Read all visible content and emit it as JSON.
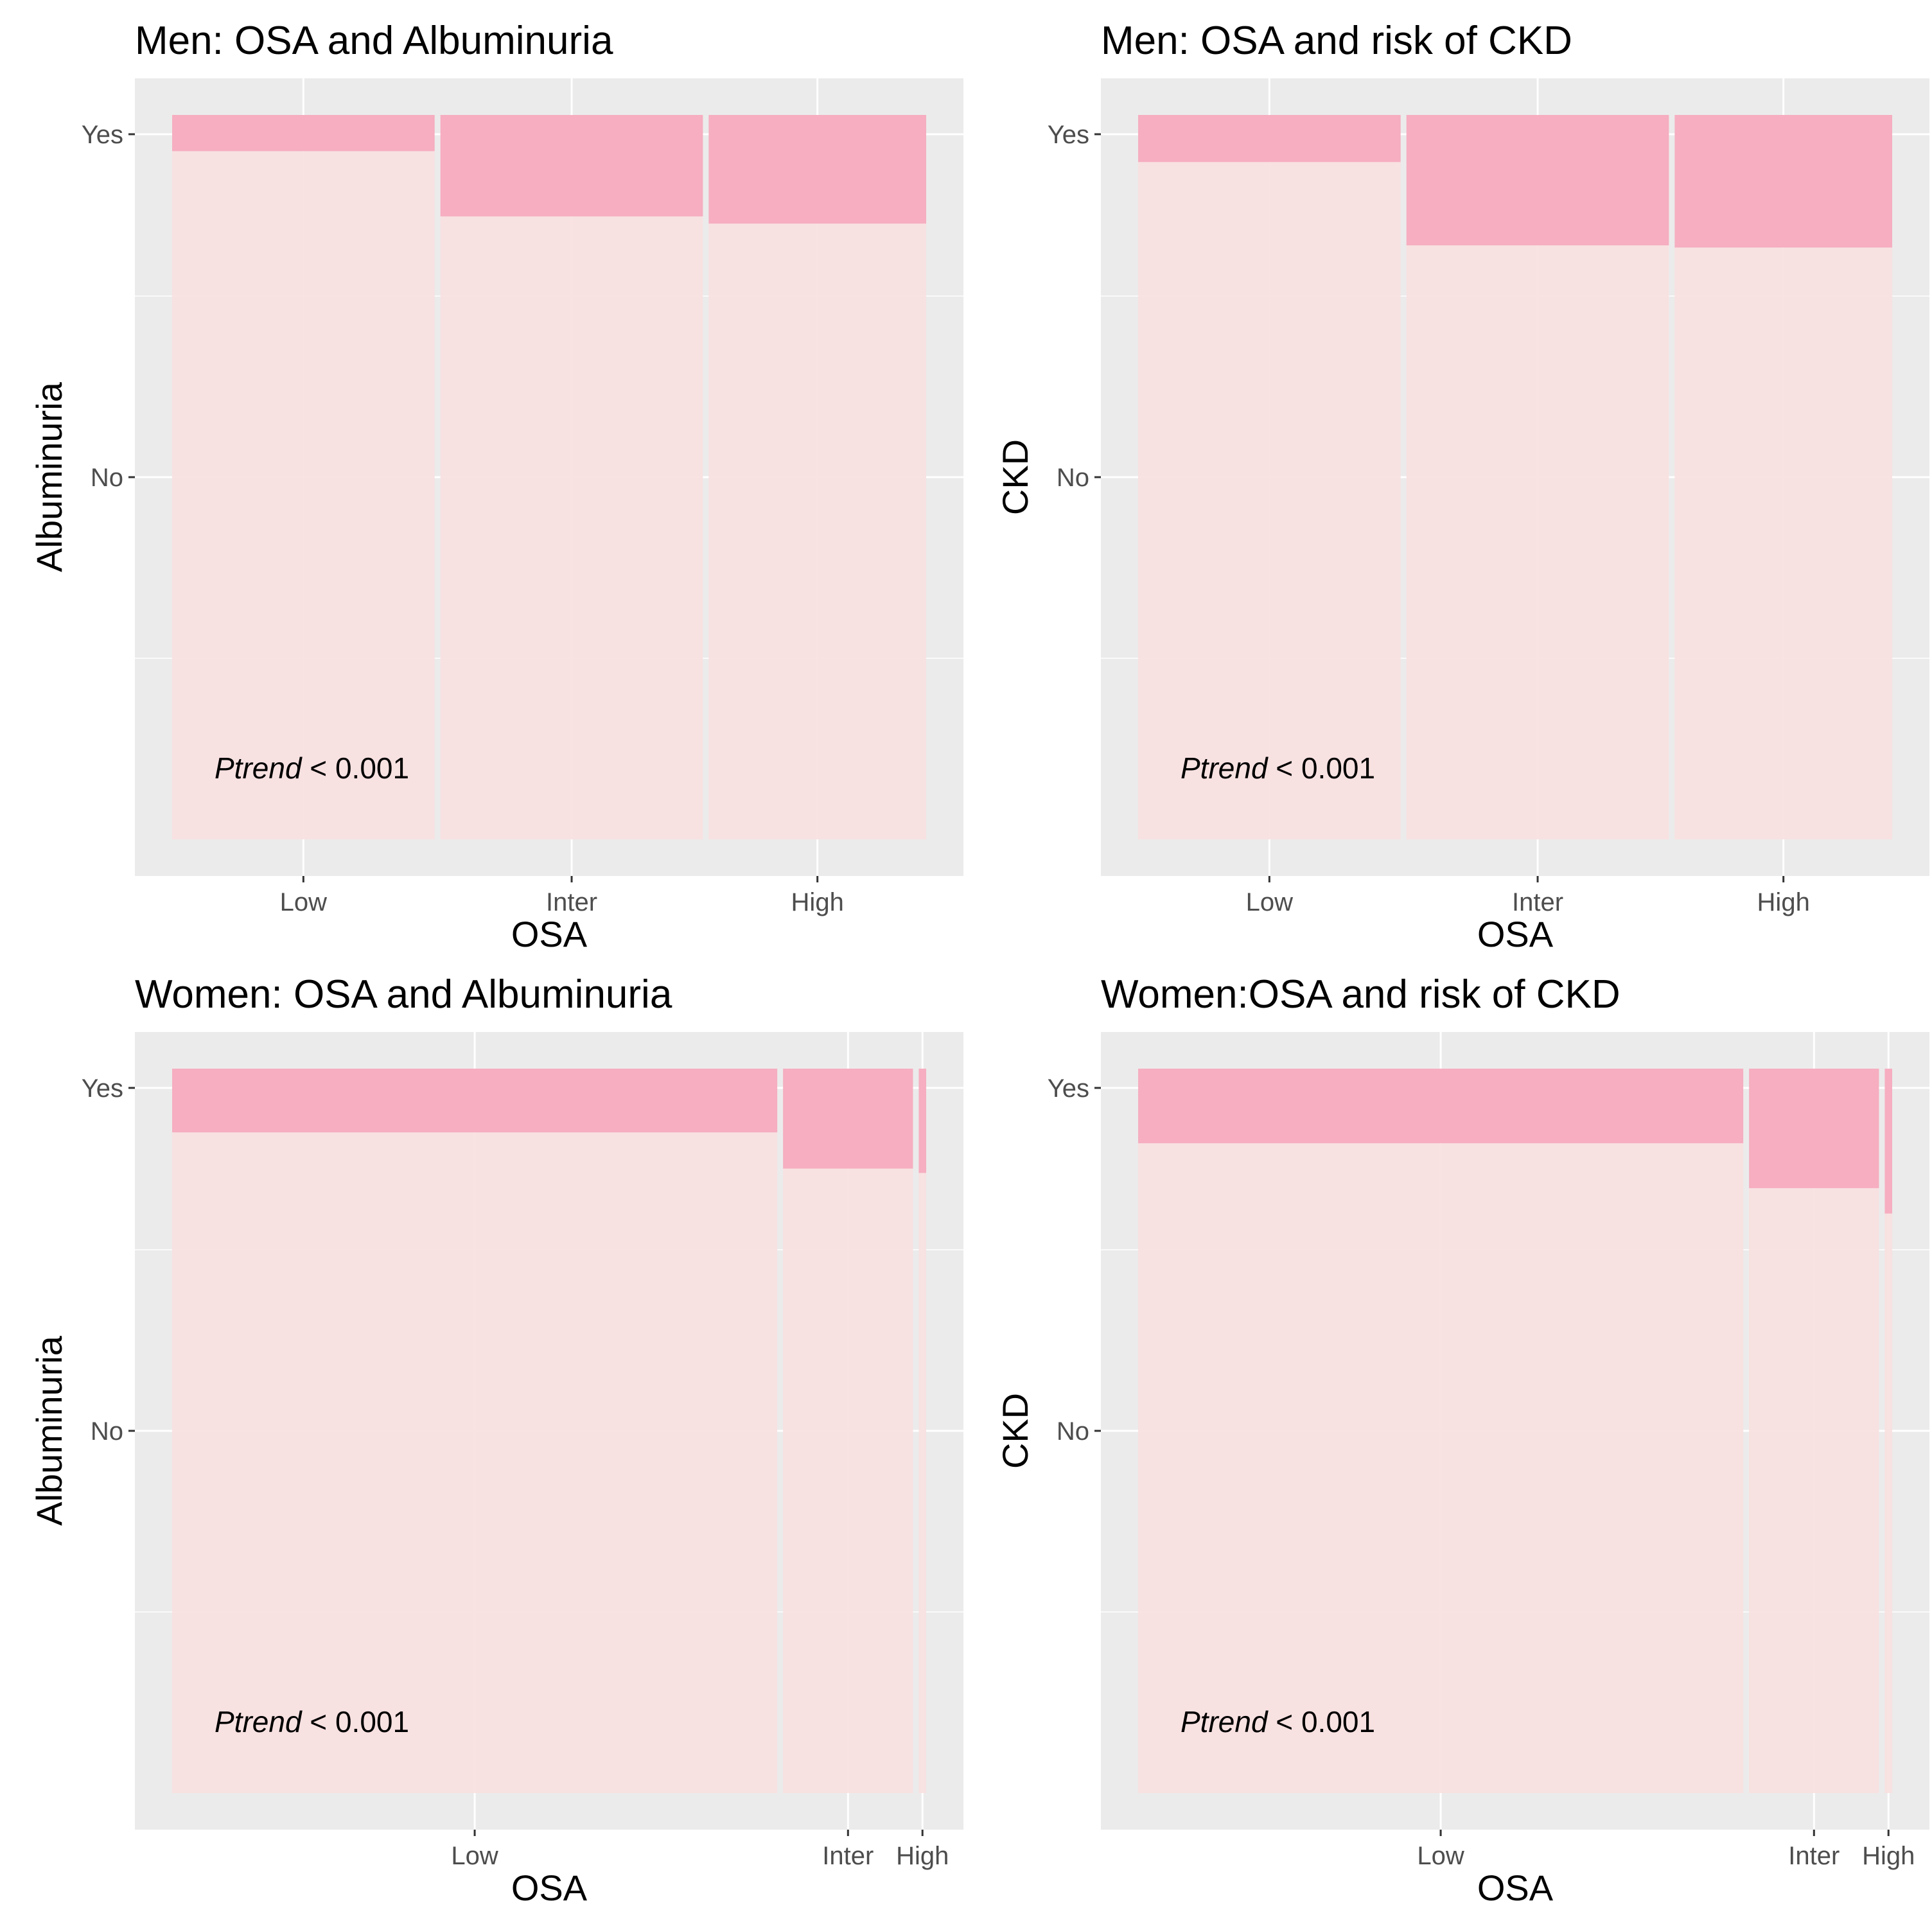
{
  "colors": {
    "panel_background": "#ebebeb",
    "gridline": "#ffffff",
    "no_fill": "#f8e0e0",
    "yes_fill": "#f6aec0",
    "tick_mark": "#333333"
  },
  "chart_data": [
    {
      "type": "mosaic",
      "title": "Men: OSA and Albuminuria",
      "xlabel": "OSA",
      "ylabel": "Albuminuria",
      "ytick_labels": [
        "Yes",
        "No"
      ],
      "annotation": {
        "italic": "Ptrend",
        "rest": "< 0.001"
      },
      "categories": [
        "Low",
        "Inter",
        "High"
      ],
      "column_share": [
        0.35,
        0.35,
        0.29
      ],
      "yes_proportion": [
        0.05,
        0.14,
        0.15
      ]
    },
    {
      "type": "mosaic",
      "title": "Men: OSA and risk of CKD",
      "xlabel": "OSA",
      "ylabel": "CKD",
      "ytick_labels": [
        "Yes",
        "No"
      ],
      "annotation": {
        "italic": "Ptrend",
        "rest": "< 0.001"
      },
      "categories": [
        "Low",
        "Inter",
        "High"
      ],
      "column_share": [
        0.35,
        0.35,
        0.29
      ],
      "yes_proportion": [
        0.065,
        0.18,
        0.183
      ]
    },
    {
      "type": "mosaic",
      "title": "Women: OSA and Albuminuria",
      "xlabel": "OSA",
      "ylabel": "Albuminuria",
      "ytick_labels": [
        "Yes",
        "No"
      ],
      "annotation": {
        "italic": "Ptrend",
        "rest": "< 0.001"
      },
      "categories": [
        "Low",
        "Inter",
        "High"
      ],
      "column_share": [
        0.815,
        0.175,
        0.01
      ],
      "yes_proportion": [
        0.088,
        0.138,
        0.144
      ]
    },
    {
      "type": "mosaic",
      "title": "Women:OSA and risk of CKD",
      "xlabel": "OSA",
      "ylabel": "CKD",
      "ytick_labels": [
        "Yes",
        "No"
      ],
      "annotation": {
        "italic": "Ptrend",
        "rest": "< 0.001"
      },
      "categories": [
        "Low",
        "Inter",
        "High"
      ],
      "column_share": [
        0.815,
        0.175,
        0.01
      ],
      "yes_proportion": [
        0.103,
        0.165,
        0.2
      ]
    }
  ]
}
